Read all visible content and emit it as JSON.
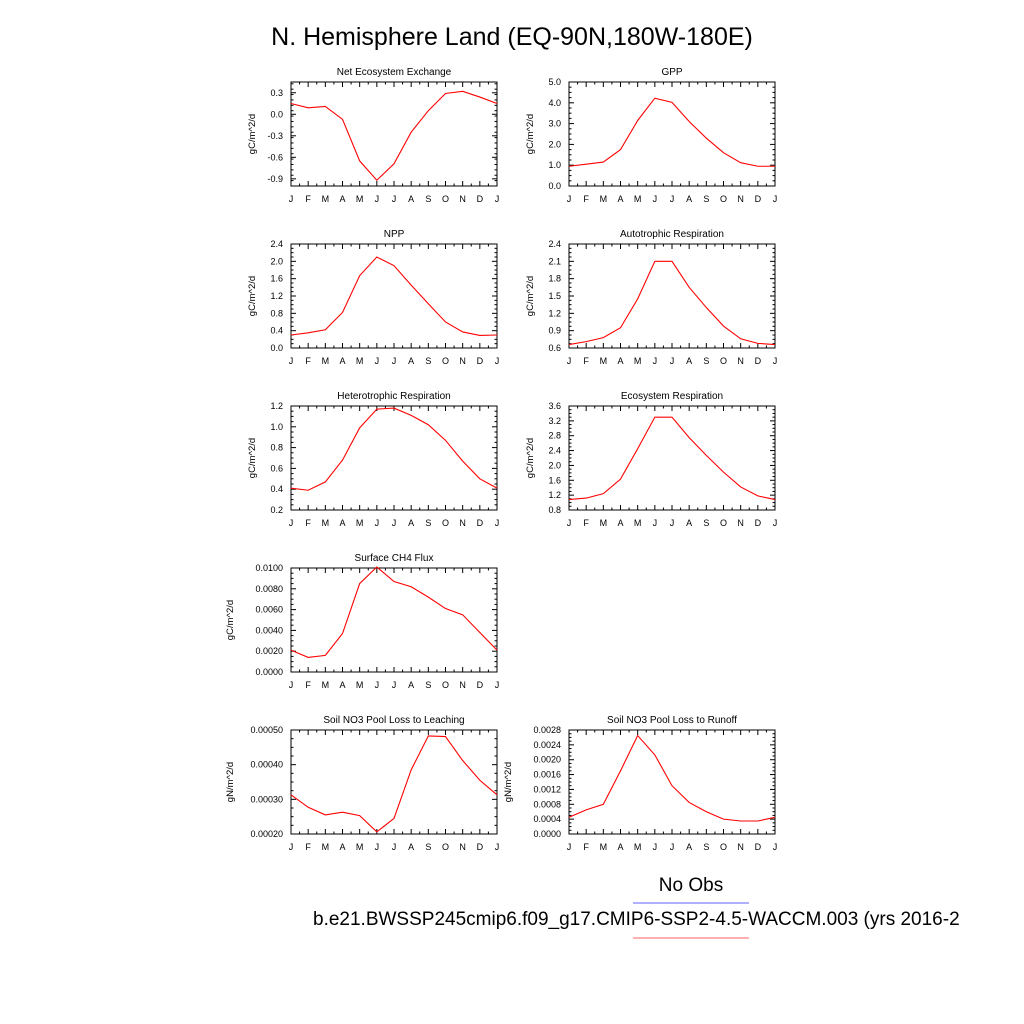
{
  "page": {
    "title": "N. Hemisphere Land (EQ-90N,180W-180E)",
    "legend_obs_label": "No Obs",
    "legend_case_label": "b.e21.BWSSP245cmip6.f09_g17.CMIP6-SSP2-4.5-WACCM.003 (yrs 2016-2",
    "obs_line_color": "#8080ff",
    "case_line_color": "#ff8080"
  },
  "chart_data": [
    {
      "type": "line",
      "title": "Net Ecosystem Exchange",
      "ylabel": "gC/m^2/d",
      "categories": [
        "J",
        "F",
        "M",
        "A",
        "M",
        "J",
        "J",
        "A",
        "S",
        "O",
        "N",
        "D",
        "J"
      ],
      "ylim": [
        -1.0,
        0.45
      ],
      "yticks": [
        "0.3",
        "0.0",
        "-0.3",
        "-0.6",
        "-0.9"
      ],
      "ytick_values": [
        0.3,
        0.0,
        -0.3,
        -0.6,
        -0.9
      ],
      "series": [
        {
          "color": "#ff0000",
          "values": [
            0.15,
            0.09,
            0.11,
            -0.07,
            -0.65,
            -0.92,
            -0.69,
            -0.25,
            0.05,
            0.29,
            0.32,
            0.24,
            0.15
          ]
        }
      ]
    },
    {
      "type": "line",
      "title": "GPP",
      "ylabel": "gC/m^2/d",
      "categories": [
        "J",
        "F",
        "M",
        "A",
        "M",
        "J",
        "J",
        "A",
        "S",
        "O",
        "N",
        "D",
        "J"
      ],
      "ylim": [
        0.0,
        5.0
      ],
      "yticks": [
        "5.0",
        "4.0",
        "3.0",
        "2.0",
        "1.0",
        "0.0"
      ],
      "ytick_values": [
        5.0,
        4.0,
        3.0,
        2.0,
        1.0,
        0.0
      ],
      "series": [
        {
          "color": "#ff0000",
          "values": [
            0.95,
            1.05,
            1.15,
            1.75,
            3.15,
            4.22,
            4.02,
            3.1,
            2.3,
            1.6,
            1.12,
            0.95,
            0.95
          ]
        }
      ]
    },
    {
      "type": "line",
      "title": "NPP",
      "ylabel": "gC/m^2/d",
      "categories": [
        "J",
        "F",
        "M",
        "A",
        "M",
        "J",
        "J",
        "A",
        "S",
        "O",
        "N",
        "D",
        "J"
      ],
      "ylim": [
        0.0,
        2.4
      ],
      "yticks": [
        "2.4",
        "2.0",
        "1.6",
        "1.2",
        "0.8",
        "0.4",
        "0.0"
      ],
      "ytick_values": [
        2.4,
        2.0,
        1.6,
        1.2,
        0.8,
        0.4,
        0.0
      ],
      "series": [
        {
          "color": "#ff0000",
          "values": [
            0.3,
            0.35,
            0.42,
            0.82,
            1.67,
            2.1,
            1.9,
            1.45,
            1.02,
            0.6,
            0.37,
            0.29,
            0.3
          ]
        }
      ]
    },
    {
      "type": "line",
      "title": "Autotrophic Respiration",
      "ylabel": "gC/m^2/d",
      "categories": [
        "J",
        "F",
        "M",
        "A",
        "M",
        "J",
        "J",
        "A",
        "S",
        "O",
        "N",
        "D",
        "J"
      ],
      "ylim": [
        0.6,
        2.4
      ],
      "yticks": [
        "2.4",
        "2.1",
        "1.8",
        "1.5",
        "1.2",
        "0.9",
        "0.6"
      ],
      "ytick_values": [
        2.4,
        2.1,
        1.8,
        1.5,
        1.2,
        0.9,
        0.6
      ],
      "series": [
        {
          "color": "#ff0000",
          "values": [
            0.66,
            0.71,
            0.78,
            0.95,
            1.45,
            2.1,
            2.1,
            1.65,
            1.3,
            0.98,
            0.76,
            0.68,
            0.66
          ]
        }
      ]
    },
    {
      "type": "line",
      "title": "Heterotrophic Respiration",
      "ylabel": "gC/m^2/d",
      "categories": [
        "J",
        "F",
        "M",
        "A",
        "M",
        "J",
        "J",
        "A",
        "S",
        "O",
        "N",
        "D",
        "J"
      ],
      "ylim": [
        0.2,
        1.2
      ],
      "yticks": [
        "1.2",
        "1.0",
        "0.8",
        "0.6",
        "0.4",
        "0.2"
      ],
      "ytick_values": [
        1.2,
        1.0,
        0.8,
        0.6,
        0.4,
        0.2
      ],
      "series": [
        {
          "color": "#ff0000",
          "values": [
            0.41,
            0.39,
            0.47,
            0.68,
            0.99,
            1.17,
            1.18,
            1.11,
            1.02,
            0.87,
            0.67,
            0.5,
            0.41
          ]
        }
      ]
    },
    {
      "type": "line",
      "title": "Ecosystem Respiration",
      "ylabel": "gC/m^2/d",
      "categories": [
        "J",
        "F",
        "M",
        "A",
        "M",
        "J",
        "J",
        "A",
        "S",
        "O",
        "N",
        "D",
        "J"
      ],
      "ylim": [
        0.8,
        3.6
      ],
      "yticks": [
        "3.6",
        "3.2",
        "2.8",
        "2.4",
        "2.0",
        "1.6",
        "1.2",
        "0.8"
      ],
      "ytick_values": [
        3.6,
        3.2,
        2.8,
        2.4,
        2.0,
        1.6,
        1.2,
        0.8
      ],
      "series": [
        {
          "color": "#ff0000",
          "values": [
            1.08,
            1.12,
            1.24,
            1.63,
            2.45,
            3.3,
            3.3,
            2.75,
            2.27,
            1.82,
            1.42,
            1.18,
            1.08
          ]
        }
      ]
    },
    {
      "type": "line",
      "title": "Surface CH4 Flux",
      "ylabel": "gC/m^2/d",
      "categories": [
        "J",
        "F",
        "M",
        "A",
        "M",
        "J",
        "J",
        "A",
        "S",
        "O",
        "N",
        "D",
        "J"
      ],
      "ylim": [
        0.0,
        0.01
      ],
      "yticks": [
        "0.0100",
        "0.0080",
        "0.0060",
        "0.0040",
        "0.0020",
        "0.0000"
      ],
      "ytick_values": [
        0.01,
        0.008,
        0.006,
        0.004,
        0.002,
        0.0
      ],
      "series": [
        {
          "color": "#ff0000",
          "values": [
            0.0021,
            0.0014,
            0.0016,
            0.0037,
            0.0085,
            0.0101,
            0.0087,
            0.0082,
            0.0072,
            0.0061,
            0.0055,
            0.0038,
            0.0021
          ]
        }
      ]
    },
    {
      "type": "line",
      "title": "Soil NO3 Pool Loss to Leaching",
      "ylabel": "gN/m^2/d",
      "categories": [
        "J",
        "F",
        "M",
        "A",
        "M",
        "J",
        "J",
        "A",
        "S",
        "O",
        "N",
        "D",
        "J"
      ],
      "ylim": [
        0.0002,
        0.0005
      ],
      "yticks": [
        "0.00050",
        "0.00040",
        "0.00030",
        "0.00020"
      ],
      "ytick_values": [
        0.0005,
        0.0004,
        0.0003,
        0.0002
      ],
      "series": [
        {
          "color": "#ff0000",
          "values": [
            0.000313,
            0.000277,
            0.000255,
            0.000263,
            0.000253,
            0.000206,
            0.000245,
            0.000385,
            0.000483,
            0.000481,
            0.000412,
            0.000355,
            0.000313
          ]
        }
      ]
    },
    {
      "type": "line",
      "title": "Soil NO3 Pool Loss to Runoff",
      "ylabel": "gN/m^2/d",
      "categories": [
        "J",
        "F",
        "M",
        "A",
        "M",
        "J",
        "J",
        "A",
        "S",
        "O",
        "N",
        "D",
        "J"
      ],
      "ylim": [
        0.0,
        0.0028
      ],
      "yticks": [
        "0.0028",
        "0.0024",
        "0.0020",
        "0.0016",
        "0.0012",
        "0.0008",
        "0.0004",
        "0.0000"
      ],
      "ytick_values": [
        0.0028,
        0.0024,
        0.002,
        0.0016,
        0.0012,
        0.0008,
        0.0004,
        0.0
      ],
      "series": [
        {
          "color": "#ff0000",
          "values": [
            0.00045,
            0.00065,
            0.0008,
            0.0017,
            0.00265,
            0.00213,
            0.0013,
            0.00085,
            0.0006,
            0.0004,
            0.00035,
            0.00035,
            0.00045
          ]
        }
      ]
    }
  ]
}
